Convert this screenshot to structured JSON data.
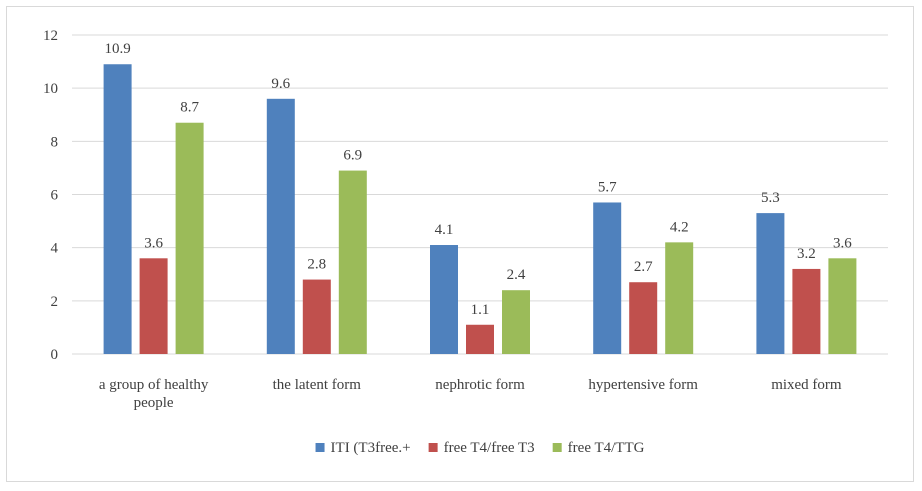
{
  "chart_data": {
    "type": "bar",
    "title": "",
    "xlabel": "",
    "ylabel": "",
    "ylim": [
      0,
      12
    ],
    "yticks": [
      0,
      2,
      4,
      6,
      8,
      10,
      12
    ],
    "grid": "horizontal",
    "legend_position": "bottom",
    "categories": [
      [
        "a group of healthy",
        "people"
      ],
      [
        "the latent form"
      ],
      [
        "nephrotic form"
      ],
      [
        "hypertensive form"
      ],
      [
        "mixed form"
      ]
    ],
    "series": [
      {
        "name": "ITI (T3free.+",
        "color": "#4f81bd",
        "values": [
          10.9,
          9.6,
          4.1,
          5.7,
          5.3
        ],
        "labels": [
          "10.9",
          "9.6",
          "4.1",
          "5.7",
          "5.3"
        ]
      },
      {
        "name": "free T4/free T3",
        "color": "#c0504d",
        "values": [
          3.6,
          2.8,
          1.1,
          2.7,
          3.2
        ],
        "labels": [
          "3.6",
          "2.8",
          "1.1",
          "2.7",
          "3.2"
        ]
      },
      {
        "name": "free T4/TTG",
        "color": "#9bbb59",
        "values": [
          8.7,
          6.9,
          2.4,
          4.2,
          3.6
        ],
        "labels": [
          "8.7",
          "6.9",
          "2.4",
          "4.2",
          "3.6"
        ]
      }
    ]
  }
}
